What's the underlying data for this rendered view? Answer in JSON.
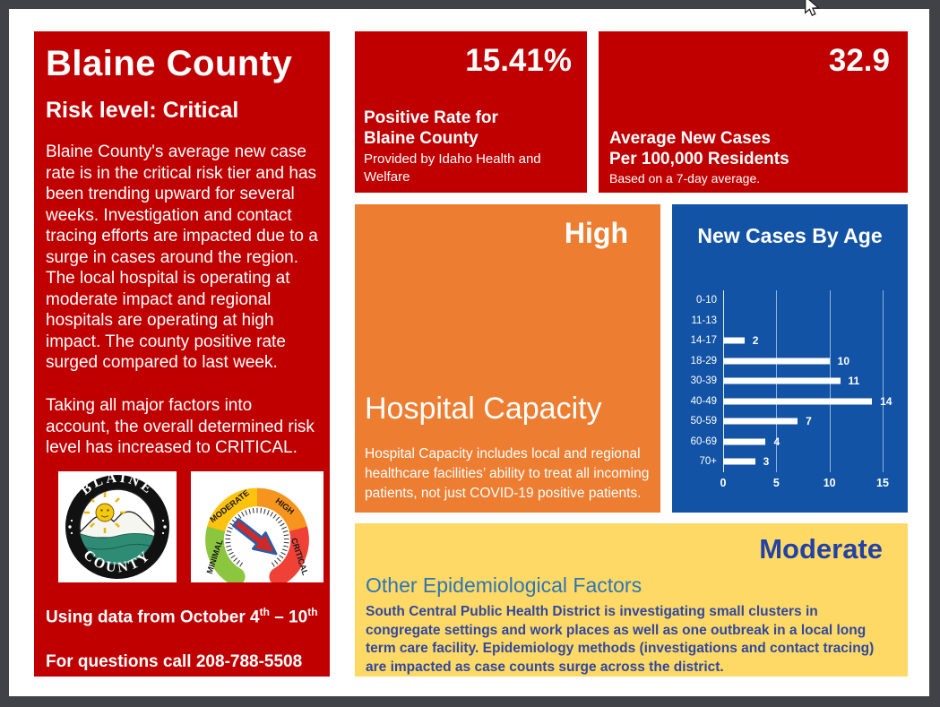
{
  "colors": {
    "panel_red": "#C00000",
    "panel_orange": "#ED7D31",
    "panel_blue": "#1353A6",
    "panel_yellow": "#FFD966",
    "moderate_text": "#2342A5",
    "epi_heading_blue": "#2E75B6",
    "epi_body_blue": "#31489E",
    "gauge_green": "#8CC63F",
    "gauge_yellow": "#FFC20E",
    "gauge_orange": "#F7941D",
    "gauge_red": "#EF4136"
  },
  "left_panel": {
    "title": "Blaine County",
    "risk_level": "Risk level: Critical",
    "paragraph1": "Blaine County's average new case rate is in the critical risk tier and has been trending upward for several weeks. Investigation and contact tracing efforts are impacted due to a surge in cases around the region. The local hospital is operating at moderate impact and regional hospitals are operating at high impact. The county positive rate surged compared to last week.",
    "paragraph2": "Taking all major factors into account, the overall determined risk level has increased to CRITICAL.",
    "seal": {
      "top": "BLAINE",
      "bottom": "COUNTY"
    },
    "gauge": {
      "labels": [
        "MINIMAL",
        "MODERATE",
        "HIGH",
        "CRITICAL"
      ]
    },
    "date_line": {
      "prefix": "Using data from October 4",
      "sup_a": "th",
      "middle": " – 10",
      "sup_b": "th"
    },
    "questions_line": "For questions call 208-788-5508"
  },
  "positive_rate_panel": {
    "value": "15.41%",
    "title_line1": "Positive Rate for",
    "title_line2": "Blaine County",
    "source": "Provided by Idaho Health and Welfare"
  },
  "avg_cases_panel": {
    "value": "32.9",
    "title_line1": "Average New Cases",
    "title_line2": "Per 100,000 Residents",
    "note": "Based on a 7-day average."
  },
  "hospital_panel": {
    "status": "High",
    "title": "Hospital Capacity",
    "description": "Hospital Capacity includes local and regional healthcare facilities’ ability to treat all incoming patients, not just COVID-19 positive patients."
  },
  "epi_panel": {
    "status": "Moderate",
    "heading": "Other Epidemiological Factors",
    "body": "South Central Public Health District is investigating small clusters in congregate settings and work places as well as one outbreak in a local long term care facility. Epidemiology methods (investigations and contact tracing) are impacted as case counts surge across the district."
  },
  "chart_data": {
    "type": "bar",
    "orientation": "horizontal",
    "title": "New Cases By Age",
    "categories": [
      "0-10",
      "11-13",
      "14-17",
      "18-29",
      "30-39",
      "40-49",
      "50-59",
      "60-69",
      "70+"
    ],
    "values": [
      0,
      0,
      2,
      10,
      11,
      14,
      7,
      4,
      3
    ],
    "xlim": [
      0,
      15
    ],
    "x_ticks": [
      0,
      5,
      10,
      15
    ],
    "bar_color": "#ffffff",
    "grid": true,
    "legend": false
  }
}
